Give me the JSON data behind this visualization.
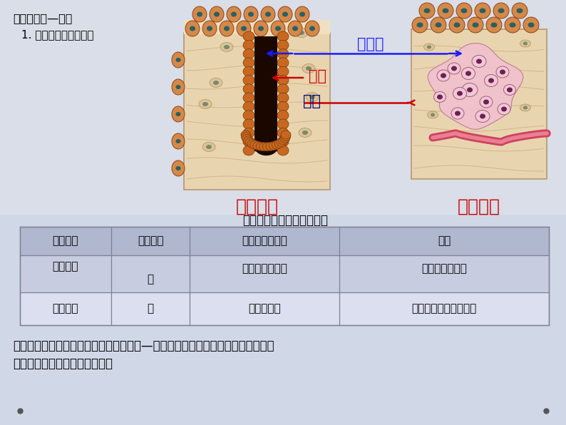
{
  "bg_color": "#d0d8e8",
  "diagram_bg": "#f0eeea",
  "title_text": "内分腺分泌—激素",
  "subtitle_text": "1. 外分泌腺与内分泌腺",
  "diagram_label1": "腺细胞",
  "diagram_label2": "导管",
  "diagram_label3": "血管",
  "label1_color": "#1a1aff",
  "label2_color": "#cc0000",
  "label3_color": "#000080",
  "caption_left": "外分泌腺",
  "caption_right": "内分泌腺",
  "caption_color": "#cc0000",
  "table_title": "人体内、外分泌腺的比较表",
  "table_headers": [
    "腺体类别",
    "有无导管",
    "分泌物输送方式",
    "实例"
  ],
  "row1_col0": "内分泌腺",
  "row1_col1": "无",
  "row1_col2": "经血液循环输送",
  "row1_col3": "甲状腺、垂体等",
  "row2_col0": "外分泌腺",
  "row2_col1": "有",
  "row2_col2": "经导管排出",
  "row2_col3": "汗腺、泪腺、皮脂腺等",
  "bottom_text_line1": "激素：内分泌腺没有导管，他们的分泌物—激素，直接进入腺体内的毛细血管，并",
  "bottom_text_line2": "随着血液循环输送到全身各处。",
  "table_header_bg": "#b0b8d0",
  "table_row1_bg": "#c8cce0",
  "table_row2_bg": "#dcdff0",
  "table_border_color": "#808090",
  "tissue_base": "#e8d5b0",
  "tissue_dark": "#c8a060",
  "cell_color": "#d4884a",
  "cell_edge": "#8b4513",
  "duct_dark": "#3a1800",
  "duct_cell": "#c06020",
  "pink_cell": "#e8b0c0",
  "purple_cell": "#9060a0",
  "dark_nucleus": "#601040",
  "blood_vessel": "#e05060"
}
